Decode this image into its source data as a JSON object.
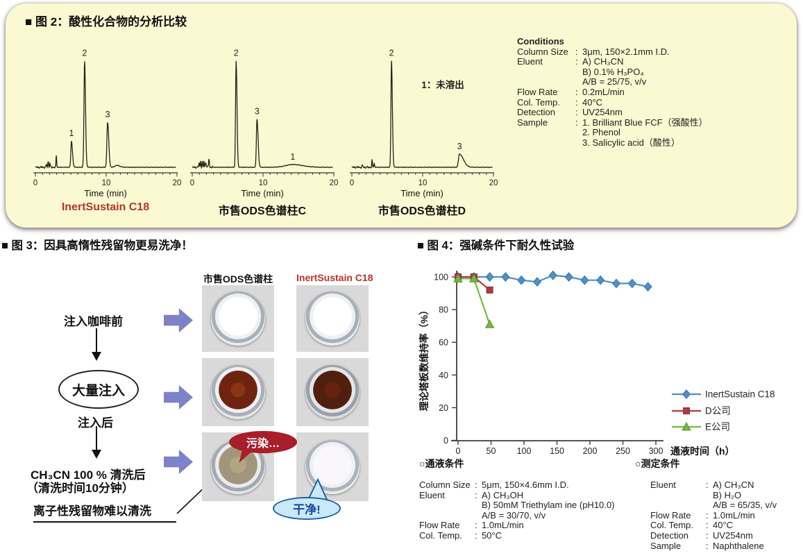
{
  "colors": {
    "panel_yellow": "#FBF9D1",
    "caption_red": "#B5342B",
    "flow_arrow_blue": "#7E82C8",
    "bubble_dirty_red": "#A81E2B",
    "bubble_clean_blue": "#C7E9F8",
    "series_blue": "#4E8FC7",
    "series_red": "#B03A40",
    "series_green": "#76B83F"
  },
  "fig2": {
    "title": "■ 图 2：酸性化合物的分析比较",
    "conditions": {
      "title": "Conditions",
      "rows": [
        {
          "label": "Column Size",
          "value": "3μm, 150×2.1mm I.D."
        },
        {
          "label": "Eluent",
          "value": "A) CH₃CN\nB) 0.1% H₃PO₄\nA/B = 25/75, v/v"
        },
        {
          "label": "Flow Rate",
          "value": "0.2mL/min"
        },
        {
          "label": "Col. Temp.",
          "value": "40°C"
        },
        {
          "label": "Detection",
          "value": "UV254nm"
        },
        {
          "label": "Sample",
          "value": "1. Brilliant Blue FCF（强酸性）\n2. Phenol\n3. Salicylic acid（酸性）"
        }
      ]
    }
  },
  "fig3": {
    "title": "■ 图 3：因具高惰性残留物更易洗净！",
    "flow": {
      "step_before": "注入咖啡前",
      "big_injection": "大量注入",
      "step_after": "注入后",
      "wash_line1": "CH₃CN 100 % 清洗后",
      "wash_line2": "（清洗时间10分钟）",
      "note": "离子性残留物难以清洗"
    },
    "columns": {
      "left": "市售ODS色谱柱",
      "right": "InertSustain C18"
    },
    "bubbles": {
      "dirty": "污染…",
      "clean": "干净!"
    },
    "comparison": {
      "cells": [
        "clean-frit-white",
        "clean-frit-white",
        "coffee-stained",
        "coffee-stained-dark",
        "ionic-residue",
        "washed-clean"
      ]
    }
  },
  "fig4": {
    "title": "■ 图 4：强碱条件下耐久性试验",
    "flow_conditions_title": "○通液条件",
    "measurement_conditions_title": "○测定条件",
    "flow_conditions": {
      "rows": [
        {
          "label": "Column Size",
          "value": "5μm, 150×4.6mm I.D."
        },
        {
          "label": "Eluent",
          "value": "A) CH₃OH\nB) 50mM Triethylam ine (pH10.0)\nA/B = 30/70, v/v"
        },
        {
          "label": "Flow Rate",
          "value": "1.0mL/min"
        },
        {
          "label": "Col. Temp.",
          "value": "50°C"
        }
      ]
    },
    "measurement_conditions": {
      "rows": [
        {
          "label": "Eluent",
          "value": "A) CH₃CN\nB) H₂O\nA/B = 65/35, v/v"
        },
        {
          "label": "Flow Rate",
          "value": "1.0mL/min"
        },
        {
          "label": "Col. Temp.",
          "value": "40°C"
        },
        {
          "label": "Detection",
          "value": "UV254nm"
        },
        {
          "label": "Sample",
          "value": "Naphthalene"
        }
      ]
    }
  },
  "chart_data": [
    {
      "id": "chromatogram-inertsustain-c18",
      "type": "line",
      "subtype": "chromatogram",
      "title": "InertSustain C18",
      "title_color": "#B5342B",
      "xlabel": "Time (min)",
      "xlim": [
        0,
        20
      ],
      "xticks": [
        0,
        10,
        20
      ],
      "peaks": [
        {
          "t": 1.55,
          "h": 0.025,
          "wl": 0.05,
          "wr": 0.05
        },
        {
          "t": 1.8,
          "h": 0.05,
          "wl": 0.05,
          "wr": 0.06
        },
        {
          "t": 2.05,
          "h": 0.035,
          "wl": 0.05,
          "wr": 0.05
        },
        {
          "t": 2.95,
          "h": 0.11,
          "wl": 0.04,
          "wr": 0.05
        },
        {
          "t": 5.1,
          "h": 0.24,
          "wl": 0.09,
          "wr": 0.14,
          "label": "1"
        },
        {
          "t": 6.95,
          "h": 0.97,
          "wl": 0.09,
          "wr": 0.13,
          "label": "2"
        },
        {
          "t": 10.2,
          "h": 0.41,
          "wl": 0.1,
          "wr": 0.16,
          "label": "3"
        },
        {
          "t": 11.5,
          "h": 0.018,
          "wl": 0.25,
          "wr": 0.4
        }
      ]
    },
    {
      "id": "chromatogram-commercial-ods-c",
      "type": "line",
      "subtype": "chromatogram",
      "title": "市售ODS色谱柱C",
      "title_color": "#111111",
      "xlabel": "Time (min)",
      "xlim": [
        0,
        20
      ],
      "xticks": [
        0,
        10,
        20
      ],
      "peaks": [
        {
          "t": 0.95,
          "h": 0.04,
          "wl": 0.04,
          "wr": 0.05
        },
        {
          "t": 1.15,
          "h": 0.06,
          "wl": 0.04,
          "wr": 0.05
        },
        {
          "t": 1.4,
          "h": 0.05,
          "wl": 0.05,
          "wr": 0.05
        },
        {
          "t": 1.65,
          "h": 0.06,
          "wl": 0.04,
          "wr": 0.05
        },
        {
          "t": 1.9,
          "h": 0.05,
          "wl": 0.05,
          "wr": 0.06
        },
        {
          "t": 2.35,
          "h": 0.08,
          "wl": 0.05,
          "wr": 0.06
        },
        {
          "t": 6.2,
          "h": 0.97,
          "wl": 0.08,
          "wr": 0.12,
          "label": "2"
        },
        {
          "t": 9.15,
          "h": 0.44,
          "wl": 0.09,
          "wr": 0.15,
          "label": "3"
        },
        {
          "t": 14.2,
          "h": 0.025,
          "wl": 1.0,
          "wr": 1.4,
          "label": "1"
        }
      ]
    },
    {
      "id": "chromatogram-commercial-ods-d",
      "type": "line",
      "subtype": "chromatogram",
      "title": "市售ODS色谱柱D",
      "title_color": "#111111",
      "xlabel": "Time (min)",
      "xlim": [
        0,
        20
      ],
      "xticks": [
        0,
        10,
        20
      ],
      "annotation": "1：未溶出",
      "annotation_xy": [
        144,
        72
      ],
      "peaks": [
        {
          "t": 1.5,
          "h": 0.02,
          "wl": 0.05,
          "wr": 0.05
        },
        {
          "t": 2.85,
          "h": 0.065,
          "wl": 0.04,
          "wr": 0.05
        },
        {
          "t": 3.15,
          "h": 0.035,
          "wl": 0.05,
          "wr": 0.06
        },
        {
          "t": 5.6,
          "h": 0.97,
          "wl": 0.08,
          "wr": 0.12,
          "label": "2"
        },
        {
          "t": 15.2,
          "h": 0.12,
          "wl": 0.14,
          "wr": 0.55,
          "label": "3"
        }
      ]
    },
    {
      "id": "alkaline-durability",
      "type": "line",
      "title": "图 4：强碱条件下耐久性试验",
      "xlabel": "通液时间（h）",
      "ylabel": "理论塔板数维持率（%）",
      "xlim": [
        0,
        300
      ],
      "ylim": [
        0,
        100
      ],
      "xticks": [
        0,
        50,
        100,
        150,
        200,
        250,
        300
      ],
      "yticks": [
        0,
        20,
        40,
        60,
        80,
        100
      ],
      "grid": false,
      "legend_position": "right",
      "series": [
        {
          "name": "InertSustain C18",
          "marker": "diamond",
          "color": "#4E8FC7",
          "edge": "#3A76AC",
          "points": [
            [
              0,
              100
            ],
            [
              24,
              100
            ],
            [
              48,
              100
            ],
            [
              72,
              100
            ],
            [
              96,
              98
            ],
            [
              120,
              97
            ],
            [
              144,
              101
            ],
            [
              168,
              100
            ],
            [
              192,
              98
            ],
            [
              216,
              98
            ],
            [
              240,
              96
            ],
            [
              264,
              96
            ],
            [
              288,
              94
            ]
          ]
        },
        {
          "name": "D公司",
          "marker": "square",
          "color": "#B03A40",
          "edge": "#8E2F34",
          "points": [
            [
              0,
              100
            ],
            [
              24,
              100
            ],
            [
              48,
              92
            ]
          ]
        },
        {
          "name": "E公司",
          "marker": "triangle",
          "color": "#76B83F",
          "edge": "#5C9630",
          "points": [
            [
              0,
              99
            ],
            [
              24,
              99
            ],
            [
              48,
              71
            ]
          ]
        }
      ]
    }
  ]
}
